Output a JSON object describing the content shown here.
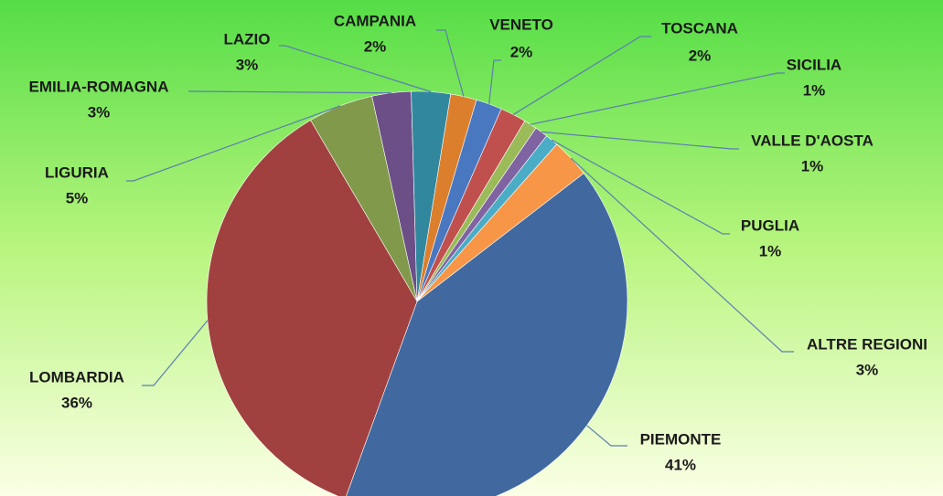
{
  "chart_data": {
    "type": "pie",
    "categories": [
      "PIEMONTE",
      "LOMBARDIA",
      "LIGURIA",
      "EMILIA-ROMAGNA",
      "LAZIO",
      "CAMPANIA",
      "VENETO",
      "TOSCANA",
      "SICILIA",
      "VALLE D'AOSTA",
      "PUGLIA",
      "ALTRE REGIONI"
    ],
    "values": [
      41,
      36,
      5,
      3,
      3,
      2,
      2,
      2,
      1,
      1,
      1,
      3
    ],
    "value_labels": [
      "41%",
      "36%",
      "5%",
      "3%",
      "3%",
      "2%",
      "2%",
      "2%",
      "1%",
      "1%",
      "1%",
      "3%"
    ],
    "colors": [
      "#4169a0",
      "#a0413f",
      "#81994a",
      "#6b4f86",
      "#31889e",
      "#dc7f2d",
      "#4a78c0",
      "#c0504d",
      "#9bbb59",
      "#8064a2",
      "#4bacc6",
      "#f79646"
    ]
  }
}
